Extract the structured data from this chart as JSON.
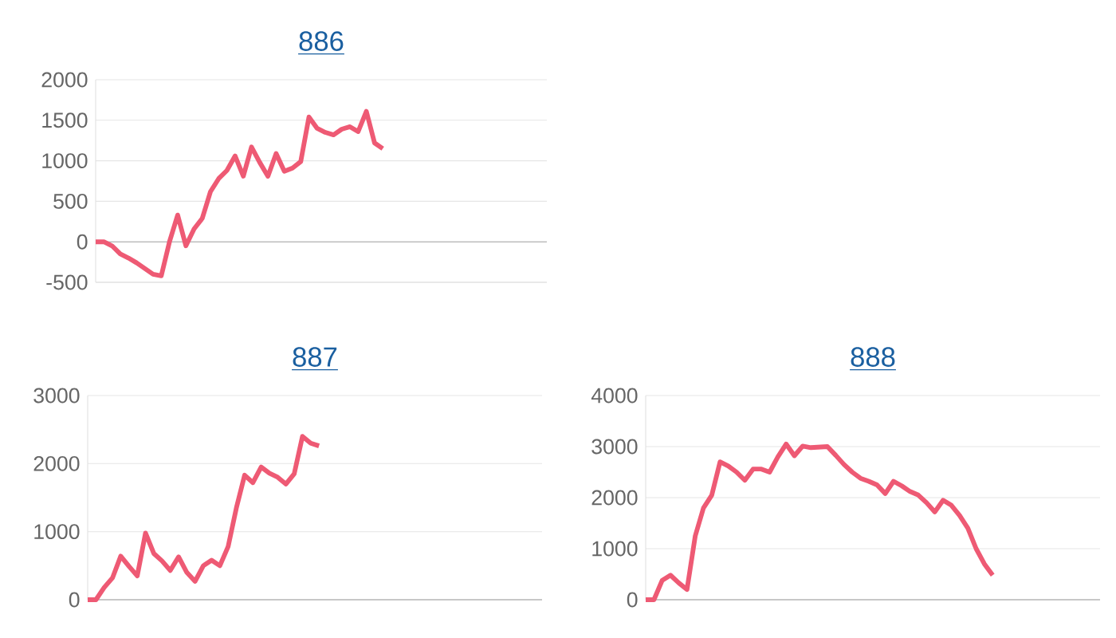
{
  "chart_data": [
    {
      "type": "line",
      "title": "886",
      "color": "#ee5a74",
      "grid": "y",
      "tick_labels": "y",
      "ylim": [
        -500,
        2000
      ],
      "yticks": [
        -500,
        0,
        500,
        1000,
        1500,
        2000
      ],
      "categories": [
        null,
        null,
        null,
        null,
        null,
        null,
        null,
        null,
        null,
        null,
        null,
        null,
        null,
        null,
        null,
        null,
        null,
        null,
        null,
        null,
        null,
        null,
        null,
        null,
        null,
        null,
        null,
        null,
        null,
        null,
        null,
        null,
        null,
        null,
        null,
        null,
        null,
        null,
        null,
        null,
        null,
        null,
        null,
        null,
        null,
        null,
        null,
        null,
        null,
        null,
        null,
        null,
        null,
        null,
        null,
        null
      ],
      "values": [
        0,
        0,
        -50,
        -150,
        -200,
        -260,
        -330,
        -400,
        -420,
        0,
        330,
        -50,
        160,
        290,
        620,
        780,
        880,
        1060,
        810,
        1170,
        980,
        810,
        1090,
        870,
        910,
        990,
        1540,
        1400,
        1350,
        1320,
        1390,
        1420,
        1360,
        1610,
        1220,
        1150,
        null,
        null,
        null,
        null,
        null,
        null,
        null,
        null,
        null,
        null,
        null,
        null,
        null,
        null,
        null,
        null,
        null,
        null,
        null,
        null
      ]
    },
    {
      "type": "line",
      "title": "887",
      "color": "#ee5a74",
      "grid": "y",
      "tick_labels": "y",
      "ylim": [
        0,
        3000
      ],
      "yticks": [
        0,
        1000,
        2000,
        3000
      ],
      "categories": [
        null,
        null,
        null,
        null,
        null,
        null,
        null,
        null,
        null,
        null,
        null,
        null,
        null,
        null,
        null,
        null,
        null,
        null,
        null,
        null,
        null,
        null,
        null,
        null,
        null,
        null,
        null,
        null,
        null,
        null,
        null,
        null,
        null,
        null,
        null,
        null,
        null,
        null,
        null,
        null,
        null,
        null,
        null,
        null,
        null,
        null,
        null,
        null,
        null,
        null,
        null,
        null,
        null,
        null,
        null,
        null
      ],
      "values": [
        0,
        0,
        180,
        320,
        640,
        490,
        350,
        980,
        680,
        570,
        430,
        630,
        400,
        270,
        500,
        580,
        500,
        780,
        1350,
        1830,
        1720,
        1950,
        1860,
        1800,
        1700,
        1850,
        2400,
        2300,
        2260,
        null,
        null,
        null,
        null,
        null,
        null,
        null,
        null,
        null,
        null,
        null,
        null,
        null,
        null,
        null,
        null,
        null,
        null,
        null,
        null,
        null,
        null,
        null,
        null,
        null,
        null,
        null
      ]
    },
    {
      "type": "line",
      "title": "888",
      "color": "#ee5a74",
      "grid": "y",
      "tick_labels": "y",
      "ylim": [
        0,
        4000
      ],
      "yticks": [
        0,
        1000,
        2000,
        3000,
        4000
      ],
      "categories": [
        null,
        null,
        null,
        null,
        null,
        null,
        null,
        null,
        null,
        null,
        null,
        null,
        null,
        null,
        null,
        null,
        null,
        null,
        null,
        null,
        null,
        null,
        null,
        null,
        null,
        null,
        null,
        null,
        null,
        null,
        null,
        null,
        null,
        null,
        null,
        null,
        null,
        null,
        null,
        null,
        null,
        null,
        null,
        null,
        null,
        null,
        null,
        null,
        null,
        null,
        null,
        null,
        null,
        null,
        null,
        null
      ],
      "values": [
        0,
        0,
        380,
        480,
        330,
        200,
        1250,
        1800,
        2050,
        2700,
        2620,
        2500,
        2340,
        2560,
        2560,
        2500,
        2800,
        3050,
        2820,
        3010,
        2980,
        2990,
        3000,
        2830,
        2650,
        2500,
        2380,
        2320,
        2250,
        2080,
        2320,
        2230,
        2120,
        2050,
        1900,
        1720,
        1950,
        1850,
        1650,
        1400,
        1000,
        700,
        480,
        null,
        null,
        null,
        null,
        null,
        null,
        null,
        null,
        null,
        null,
        null,
        null,
        null
      ]
    }
  ]
}
